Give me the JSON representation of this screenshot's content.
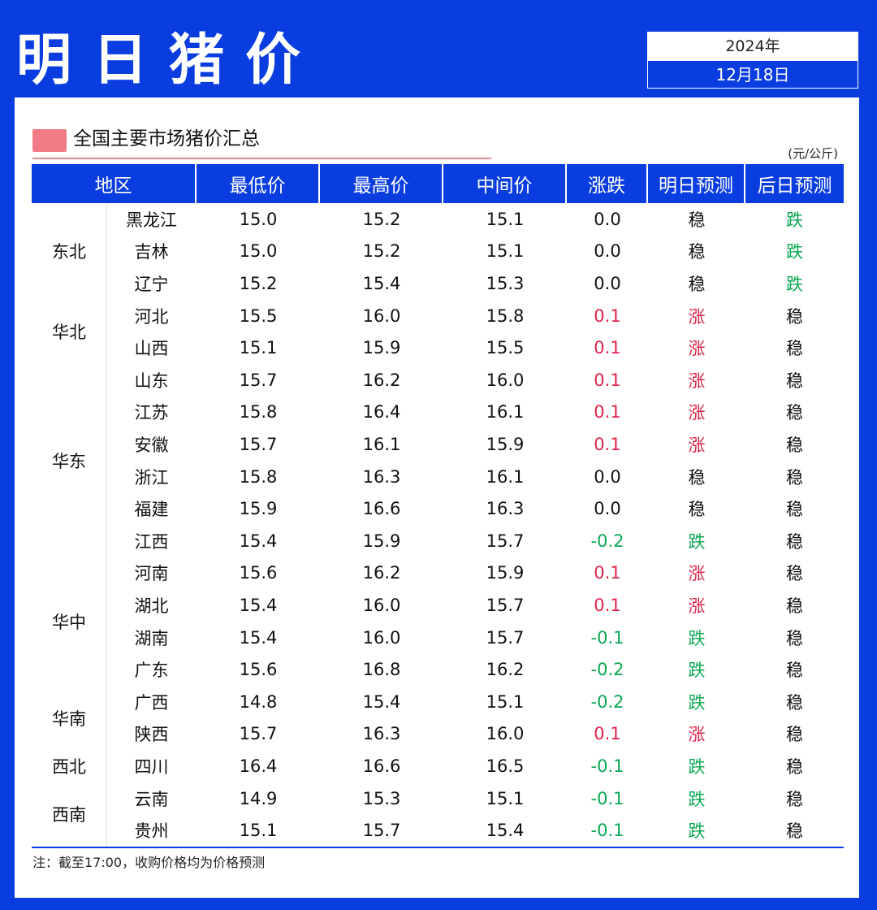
{
  "header": {
    "title": "明日猪价",
    "year": "2024年",
    "date": "12月18日"
  },
  "section": {
    "title": "全国主要市场猪价汇总",
    "unit": "(元/公斤)"
  },
  "columns": [
    "地区",
    "最低价",
    "最高价",
    "中间价",
    "涨跌",
    "明日预测",
    "后日预测"
  ],
  "regions": [
    "东北",
    "华北",
    "华东",
    "华中",
    "华南",
    "西北",
    "西南"
  ],
  "rows": [
    {
      "province": "黑龙江",
      "low": "15.0",
      "high": "15.2",
      "mid": "15.1",
      "change": "0.0",
      "tomorrow": "稳",
      "after": "跌"
    },
    {
      "province": "吉林",
      "low": "15.0",
      "high": "15.2",
      "mid": "15.1",
      "change": "0.0",
      "tomorrow": "稳",
      "after": "跌"
    },
    {
      "province": "辽宁",
      "low": "15.2",
      "high": "15.4",
      "mid": "15.3",
      "change": "0.0",
      "tomorrow": "稳",
      "after": "跌"
    },
    {
      "province": "河北",
      "low": "15.5",
      "high": "16.0",
      "mid": "15.8",
      "change": "0.1",
      "tomorrow": "涨",
      "after": "稳"
    },
    {
      "province": "山西",
      "low": "15.1",
      "high": "15.9",
      "mid": "15.5",
      "change": "0.1",
      "tomorrow": "涨",
      "after": "稳"
    },
    {
      "province": "山东",
      "low": "15.7",
      "high": "16.2",
      "mid": "16.0",
      "change": "0.1",
      "tomorrow": "涨",
      "after": "稳"
    },
    {
      "province": "江苏",
      "low": "15.8",
      "high": "16.4",
      "mid": "16.1",
      "change": "0.1",
      "tomorrow": "涨",
      "after": "稳"
    },
    {
      "province": "安徽",
      "low": "15.7",
      "high": "16.1",
      "mid": "15.9",
      "change": "0.1",
      "tomorrow": "涨",
      "after": "稳"
    },
    {
      "province": "浙江",
      "low": "15.8",
      "high": "16.3",
      "mid": "16.1",
      "change": "0.0",
      "tomorrow": "稳",
      "after": "稳"
    },
    {
      "province": "福建",
      "low": "15.9",
      "high": "16.6",
      "mid": "16.3",
      "change": "0.0",
      "tomorrow": "稳",
      "after": "稳"
    },
    {
      "province": "江西",
      "low": "15.4",
      "high": "15.9",
      "mid": "15.7",
      "change": "-0.2",
      "tomorrow": "跌",
      "after": "稳"
    },
    {
      "province": "河南",
      "low": "15.6",
      "high": "16.2",
      "mid": "15.9",
      "change": "0.1",
      "tomorrow": "涨",
      "after": "稳"
    },
    {
      "province": "湖北",
      "low": "15.4",
      "high": "16.0",
      "mid": "15.7",
      "change": "0.1",
      "tomorrow": "涨",
      "after": "稳"
    },
    {
      "province": "湖南",
      "low": "15.4",
      "high": "16.0",
      "mid": "15.7",
      "change": "-0.1",
      "tomorrow": "跌",
      "after": "稳"
    },
    {
      "province": "广东",
      "low": "15.6",
      "high": "16.8",
      "mid": "16.2",
      "change": "-0.2",
      "tomorrow": "跌",
      "after": "稳"
    },
    {
      "province": "广西",
      "low": "14.8",
      "high": "15.4",
      "mid": "15.1",
      "change": "-0.2",
      "tomorrow": "跌",
      "after": "稳"
    },
    {
      "province": "陕西",
      "low": "15.7",
      "high": "16.3",
      "mid": "16.0",
      "change": "0.1",
      "tomorrow": "涨",
      "after": "稳"
    },
    {
      "province": "四川",
      "low": "16.4",
      "high": "16.6",
      "mid": "16.5",
      "change": "-0.1",
      "tomorrow": "跌",
      "after": "稳"
    },
    {
      "province": "云南",
      "low": "14.9",
      "high": "15.3",
      "mid": "15.1",
      "change": "-0.1",
      "tomorrow": "跌",
      "after": "稳"
    },
    {
      "province": "贵州",
      "low": "15.1",
      "high": "15.7",
      "mid": "15.4",
      "change": "-0.1",
      "tomorrow": "跌",
      "after": "稳"
    }
  ],
  "footnote": "注：截至17:00，收购价格均为价格预测",
  "colors": {
    "brand_blue": "#0a3de0",
    "up": "#e0234a",
    "down": "#0aa853",
    "accent_pink": "#f07b86"
  }
}
